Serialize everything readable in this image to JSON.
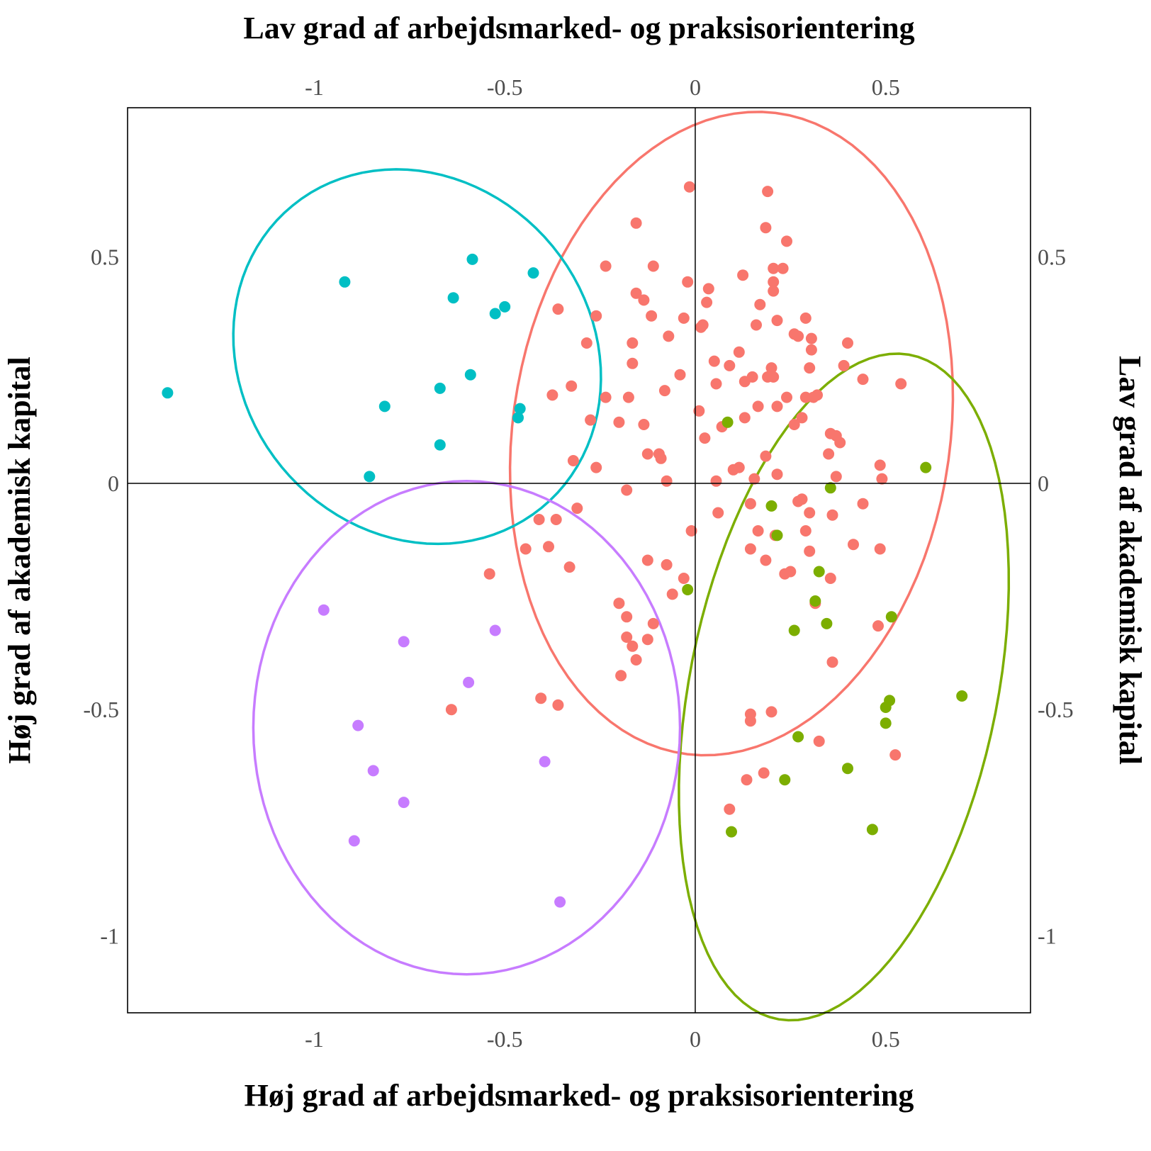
{
  "chart_data": {
    "type": "scatter",
    "xlabel_bottom": "Høj grad af arbejdsmarked- og praksisorientering",
    "xlabel_top": "Lav grad af arbejdsmarked- og praksisorientering",
    "ylabel_left": "Høj grad af akademisk kapital",
    "ylabel_right": "Lav grad af akademisk kapital",
    "xlim": [
      -1.49,
      0.88
    ],
    "ylim": [
      -1.17,
      0.83
    ],
    "x_ticks": [
      -1,
      -0.5,
      0,
      0.5
    ],
    "x_tick_labels": [
      "-1",
      "-0.5",
      "0",
      "0.5"
    ],
    "y_ticks": [
      0.5,
      0,
      -0.5,
      -1
    ],
    "y_tick_labels": [
      "0.5",
      "0",
      "-0.5",
      "-1"
    ],
    "grid": false,
    "reference_lines": [
      0,
      0
    ],
    "legend": "none",
    "series": [
      {
        "color": "#F8766D",
        "ellipse": {
          "cx": 0.095,
          "cy": 0.11,
          "rx": 0.57,
          "ry": 0.72,
          "angle_deg": -15
        },
        "points": [
          [
            -0.015,
            0.655
          ],
          [
            0.19,
            0.645
          ],
          [
            -0.155,
            0.575
          ],
          [
            0.185,
            0.565
          ],
          [
            0.24,
            0.535
          ],
          [
            -0.235,
            0.48
          ],
          [
            -0.11,
            0.48
          ],
          [
            0.205,
            0.475
          ],
          [
            0.23,
            0.475
          ],
          [
            0.125,
            0.46
          ],
          [
            0.205,
            0.445
          ],
          [
            -0.02,
            0.445
          ],
          [
            0.035,
            0.43
          ],
          [
            0.205,
            0.425
          ],
          [
            -0.155,
            0.42
          ],
          [
            -0.135,
            0.405
          ],
          [
            0.03,
            0.4
          ],
          [
            0.17,
            0.395
          ],
          [
            -0.36,
            0.385
          ],
          [
            -0.26,
            0.37
          ],
          [
            -0.115,
            0.37
          ],
          [
            -0.03,
            0.365
          ],
          [
            0.215,
            0.36
          ],
          [
            0.29,
            0.365
          ],
          [
            0.02,
            0.35
          ],
          [
            0.015,
            0.345
          ],
          [
            0.16,
            0.35
          ],
          [
            0.26,
            0.33
          ],
          [
            0.27,
            0.325
          ],
          [
            0.305,
            0.32
          ],
          [
            -0.07,
            0.325
          ],
          [
            -0.285,
            0.31
          ],
          [
            -0.165,
            0.31
          ],
          [
            0.4,
            0.31
          ],
          [
            0.305,
            0.295
          ],
          [
            0.115,
            0.29
          ],
          [
            0.05,
            0.27
          ],
          [
            -0.165,
            0.265
          ],
          [
            0.09,
            0.26
          ],
          [
            0.2,
            0.255
          ],
          [
            0.3,
            0.255
          ],
          [
            0.39,
            0.26
          ],
          [
            -0.04,
            0.24
          ],
          [
            0.15,
            0.235
          ],
          [
            0.19,
            0.235
          ],
          [
            0.205,
            0.235
          ],
          [
            0.44,
            0.23
          ],
          [
            0.13,
            0.225
          ],
          [
            0.055,
            0.22
          ],
          [
            0.54,
            0.22
          ],
          [
            -0.325,
            0.215
          ],
          [
            -0.08,
            0.205
          ],
          [
            -0.375,
            0.195
          ],
          [
            -0.235,
            0.19
          ],
          [
            -0.175,
            0.19
          ],
          [
            0.24,
            0.19
          ],
          [
            0.29,
            0.19
          ],
          [
            0.31,
            0.19
          ],
          [
            0.32,
            0.195
          ],
          [
            0.215,
            0.17
          ],
          [
            0.165,
            0.17
          ],
          [
            0.01,
            0.16
          ],
          [
            -0.275,
            0.14
          ],
          [
            -0.2,
            0.135
          ],
          [
            0.13,
            0.145
          ],
          [
            0.28,
            0.145
          ],
          [
            -0.135,
            0.13
          ],
          [
            0.07,
            0.125
          ],
          [
            0.26,
            0.13
          ],
          [
            0.355,
            0.11
          ],
          [
            0.37,
            0.105
          ],
          [
            0.025,
            0.1
          ],
          [
            0.38,
            0.09
          ],
          [
            -0.125,
            0.065
          ],
          [
            -0.095,
            0.065
          ],
          [
            0.185,
            0.06
          ],
          [
            0.35,
            0.065
          ],
          [
            -0.09,
            0.055
          ],
          [
            -0.32,
            0.05
          ],
          [
            -0.26,
            0.035
          ],
          [
            0.115,
            0.035
          ],
          [
            0.1,
            0.03
          ],
          [
            0.485,
            0.04
          ],
          [
            0.37,
            0.015
          ],
          [
            0.215,
            0.02
          ],
          [
            0.155,
            0.01
          ],
          [
            0.49,
            0.01
          ],
          [
            0.055,
            0.005
          ],
          [
            -0.075,
            0.005
          ],
          [
            -0.18,
            -0.015
          ],
          [
            0.28,
            -0.035
          ],
          [
            0.27,
            -0.04
          ],
          [
            0.145,
            -0.045
          ],
          [
            0.44,
            -0.045
          ],
          [
            -0.31,
            -0.055
          ],
          [
            0.06,
            -0.065
          ],
          [
            0.3,
            -0.065
          ],
          [
            0.36,
            -0.07
          ],
          [
            -0.41,
            -0.08
          ],
          [
            -0.365,
            -0.08
          ],
          [
            0.165,
            -0.105
          ],
          [
            0.29,
            -0.105
          ],
          [
            -0.01,
            -0.105
          ],
          [
            0.21,
            -0.115
          ],
          [
            0.415,
            -0.135
          ],
          [
            -0.385,
            -0.14
          ],
          [
            -0.445,
            -0.145
          ],
          [
            0.145,
            -0.145
          ],
          [
            0.3,
            -0.15
          ],
          [
            0.485,
            -0.145
          ],
          [
            -0.125,
            -0.17
          ],
          [
            0.185,
            -0.17
          ],
          [
            -0.075,
            -0.18
          ],
          [
            -0.33,
            -0.185
          ],
          [
            -0.54,
            -0.2
          ],
          [
            0.25,
            -0.195
          ],
          [
            0.235,
            -0.2
          ],
          [
            -0.03,
            -0.21
          ],
          [
            0.355,
            -0.21
          ],
          [
            -0.06,
            -0.245
          ],
          [
            -0.2,
            -0.265
          ],
          [
            0.315,
            -0.265
          ],
          [
            -0.18,
            -0.295
          ],
          [
            -0.11,
            -0.31
          ],
          [
            0.48,
            -0.315
          ],
          [
            -0.18,
            -0.34
          ],
          [
            -0.125,
            -0.345
          ],
          [
            -0.165,
            -0.36
          ],
          [
            -0.155,
            -0.39
          ],
          [
            0.36,
            -0.395
          ],
          [
            -0.195,
            -0.425
          ],
          [
            -0.405,
            -0.475
          ],
          [
            -0.36,
            -0.49
          ],
          [
            -0.64,
            -0.5
          ],
          [
            0.145,
            -0.51
          ],
          [
            0.2,
            -0.505
          ],
          [
            0.145,
            -0.525
          ],
          [
            0.325,
            -0.57
          ],
          [
            0.525,
            -0.6
          ],
          [
            0.18,
            -0.64
          ],
          [
            0.135,
            -0.655
          ],
          [
            0.09,
            -0.72
          ]
        ]
      },
      {
        "color": "#7CAE00",
        "ellipse": {
          "cx": 0.39,
          "cy": -0.45,
          "rx": 0.4,
          "ry": 0.755,
          "angle_deg": -15
        },
        "points": [
          [
            0.085,
            0.135
          ],
          [
            0.605,
            0.035
          ],
          [
            0.355,
            -0.01
          ],
          [
            0.2,
            -0.05
          ],
          [
            0.215,
            -0.115
          ],
          [
            0.325,
            -0.195
          ],
          [
            -0.02,
            -0.235
          ],
          [
            0.315,
            -0.26
          ],
          [
            0.515,
            -0.295
          ],
          [
            0.345,
            -0.31
          ],
          [
            0.26,
            -0.325
          ],
          [
            0.7,
            -0.47
          ],
          [
            0.51,
            -0.48
          ],
          [
            0.5,
            -0.495
          ],
          [
            0.5,
            -0.53
          ],
          [
            0.27,
            -0.56
          ],
          [
            0.4,
            -0.63
          ],
          [
            0.235,
            -0.655
          ],
          [
            0.465,
            -0.765
          ],
          [
            0.095,
            -0.77
          ]
        ]
      },
      {
        "color": "#00BFC4",
        "ellipse": {
          "cx": -0.73,
          "cy": 0.28,
          "rx": 0.49,
          "ry": 0.405,
          "angle_deg": -18
        },
        "points": [
          [
            -0.585,
            0.495
          ],
          [
            -0.425,
            0.465
          ],
          [
            -0.92,
            0.445
          ],
          [
            -0.635,
            0.41
          ],
          [
            -0.5,
            0.39
          ],
          [
            -0.525,
            0.375
          ],
          [
            -0.59,
            0.24
          ],
          [
            -0.67,
            0.21
          ],
          [
            -1.385,
            0.2
          ],
          [
            -0.815,
            0.17
          ],
          [
            -0.46,
            0.165
          ],
          [
            -0.465,
            0.145
          ],
          [
            -0.67,
            0.085
          ],
          [
            -0.855,
            0.015
          ]
        ]
      },
      {
        "color": "#C77CFF",
        "ellipse": {
          "cx": -0.6,
          "cy": -0.54,
          "rx": 0.56,
          "ry": 0.545,
          "angle_deg": 0
        },
        "points": [
          [
            -0.975,
            -0.28
          ],
          [
            -0.525,
            -0.325
          ],
          [
            -0.765,
            -0.35
          ],
          [
            -0.595,
            -0.44
          ],
          [
            -0.885,
            -0.535
          ],
          [
            -0.845,
            -0.635
          ],
          [
            -0.395,
            -0.615
          ],
          [
            -0.765,
            -0.705
          ],
          [
            -0.895,
            -0.79
          ],
          [
            -0.355,
            -0.925
          ]
        ]
      }
    ]
  }
}
